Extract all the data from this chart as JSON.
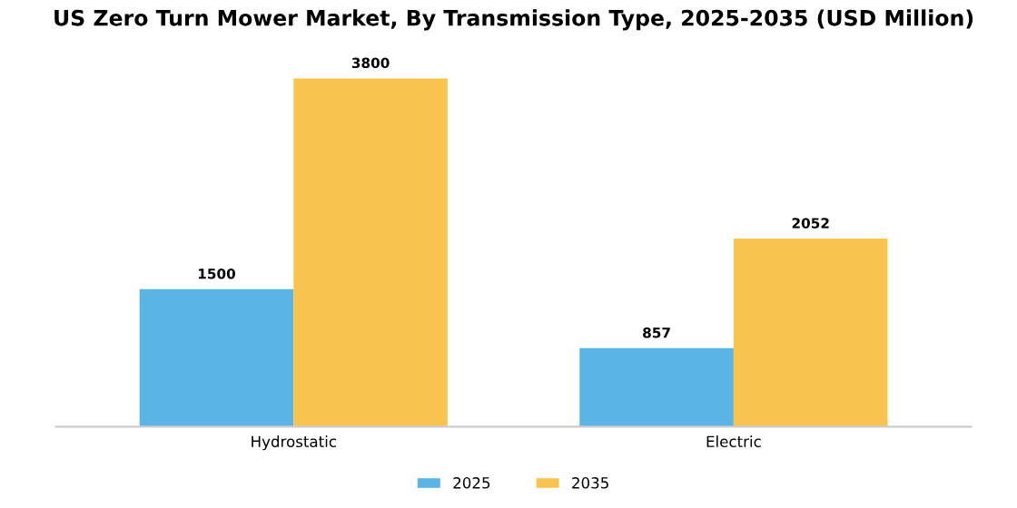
{
  "chart_data": {
    "type": "bar",
    "title": "US Zero Turn Mower Market, By Transmission Type, 2025-2035 (USD Million)",
    "categories": [
      "Hydrostatic",
      "Electric"
    ],
    "series": [
      {
        "name": "2025",
        "color": "#5ab4e5",
        "values": [
          1500,
          857
        ]
      },
      {
        "name": "2035",
        "color": "#f9c44e",
        "values": [
          3800,
          2052
        ]
      }
    ],
    "data_labels": true,
    "legend": "bottom",
    "grid": false,
    "tick_labels": "x"
  }
}
